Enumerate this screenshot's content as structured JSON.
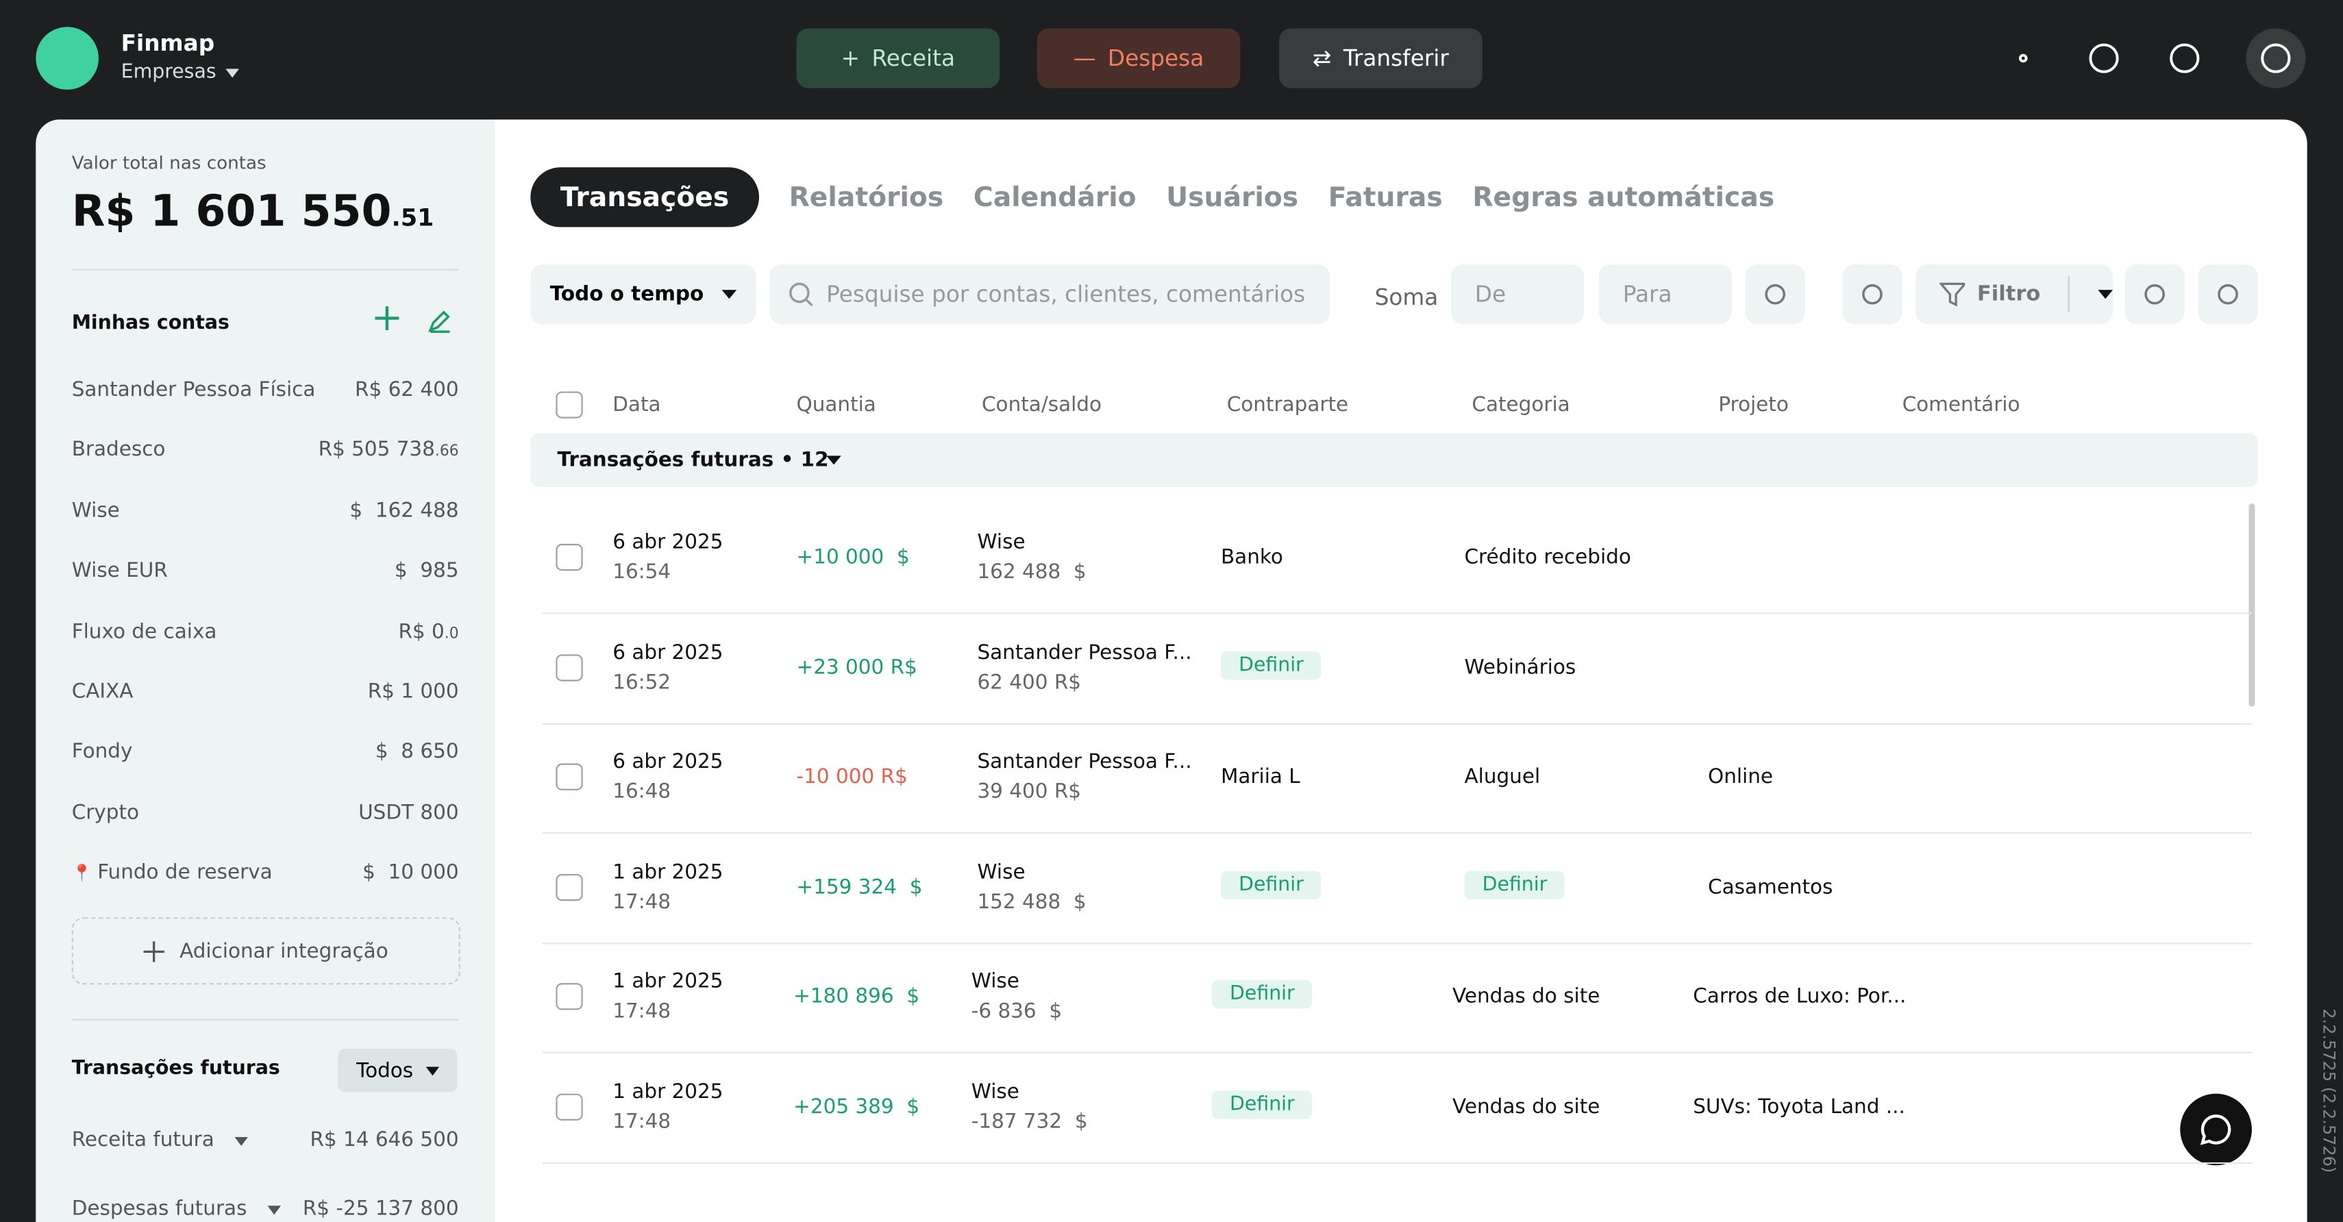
{
  "header": {
    "brand": "Finmap",
    "workspace": "Empresas",
    "actions": [
      "Receita",
      "Despesa",
      "Transferir"
    ]
  },
  "sidebar": {
    "total_label": "Valor total nas contas",
    "total": "R$ 1 601 550",
    "total_cents": ".51",
    "accounts_title": "Minhas contas",
    "accounts": [
      {
        "name": "Santander Pessoa Física",
        "amount": "R$ 62 400"
      },
      {
        "name": "Bradesco",
        "amount": "R$ 505 738",
        "cents": ".66"
      },
      {
        "name": "Wise",
        "amount": "$  162 488"
      },
      {
        "name": "Wise EUR",
        "amount": "$  985"
      },
      {
        "name": "Fluxo de caixa",
        "amount": "R$ 0",
        "cents": ".0"
      },
      {
        "name": "CAIXA",
        "amount": "R$ 1 000"
      },
      {
        "name": "Fondy",
        "amount": "$  8 650"
      },
      {
        "name": "Crypto",
        "amount": "USDT 800"
      },
      {
        "name": "Fundo de reserva",
        "amount": "$  10 000",
        "pinned": true
      }
    ],
    "add_integration": "Adicionar integração",
    "future_title": "Transações futuras",
    "future_filter": "Todos",
    "future": [
      {
        "name": "Receita futura",
        "amount": "R$ 14 646 500"
      },
      {
        "name": "Despesas futuras",
        "amount": "R$ -25 137 800"
      }
    ]
  },
  "tabs": [
    "Transações",
    "Relatórios",
    "Calendário",
    "Usuários",
    "Faturas",
    "Regras automáticas"
  ],
  "toolbar": {
    "period": "Todo o tempo",
    "search": "Pesquise por contas, clientes, comentários",
    "sum_label": "Soma",
    "from": "De",
    "to": "Para",
    "filter": "Filtro"
  },
  "table": {
    "columns": [
      "Data",
      "Quantia",
      "Conta/saldo",
      "Contraparte",
      "Categoria",
      "Projeto",
      "Comentário"
    ],
    "group": "Transações futuras • 12",
    "rows": [
      {
        "date": "6 abr 2025",
        "time": "16:54",
        "amount": "+10 000  $",
        "kind": "in",
        "account": "Wise",
        "balance": "162 488  $",
        "counterparty": "Banko",
        "category": "Crédito recebido"
      },
      {
        "date": "6 abr 2025",
        "time": "16:52",
        "amount": "+23 000 R$",
        "kind": "in",
        "account": "Santander Pessoa F...",
        "balance": "62 400 R$",
        "counterparty": {
          "badge": "Definir"
        },
        "category": "Webinários"
      },
      {
        "date": "6 abr 2025",
        "time": "16:48",
        "amount": "-10 000 R$",
        "kind": "out",
        "account": "Santander Pessoa F...",
        "balance": "39 400 R$",
        "counterparty": "Mariia L",
        "category": "Aluguel",
        "project": "Online"
      },
      {
        "date": "1 abr 2025",
        "time": "17:48",
        "amount": "+159 324  $",
        "kind": "in",
        "account": "Wise",
        "balance": "152 488  $",
        "counterparty": {
          "badge": "Definir"
        },
        "category": {
          "badge": "Definir"
        },
        "project": "Casamentos"
      },
      {
        "date": "1 abr 2025",
        "time": "17:48",
        "amount": "+180 896  $",
        "kind": "in",
        "account": "Wise",
        "balance": "-6 836  $",
        "counterparty": {
          "badge": "Definir"
        },
        "category": "Vendas do site",
        "project": "Carros de Luxo: Por..."
      },
      {
        "date": "1 abr 2025",
        "time": "17:48",
        "amount": "+205 389  $",
        "kind": "in",
        "account": "Wise",
        "balance": "-187 732  $",
        "counterparty": {
          "badge": "Definir"
        },
        "category": "Vendas do site",
        "project": "SUVs: Toyota Land ..."
      }
    ]
  },
  "version": "2.2.5725 (2.2.5726)"
}
